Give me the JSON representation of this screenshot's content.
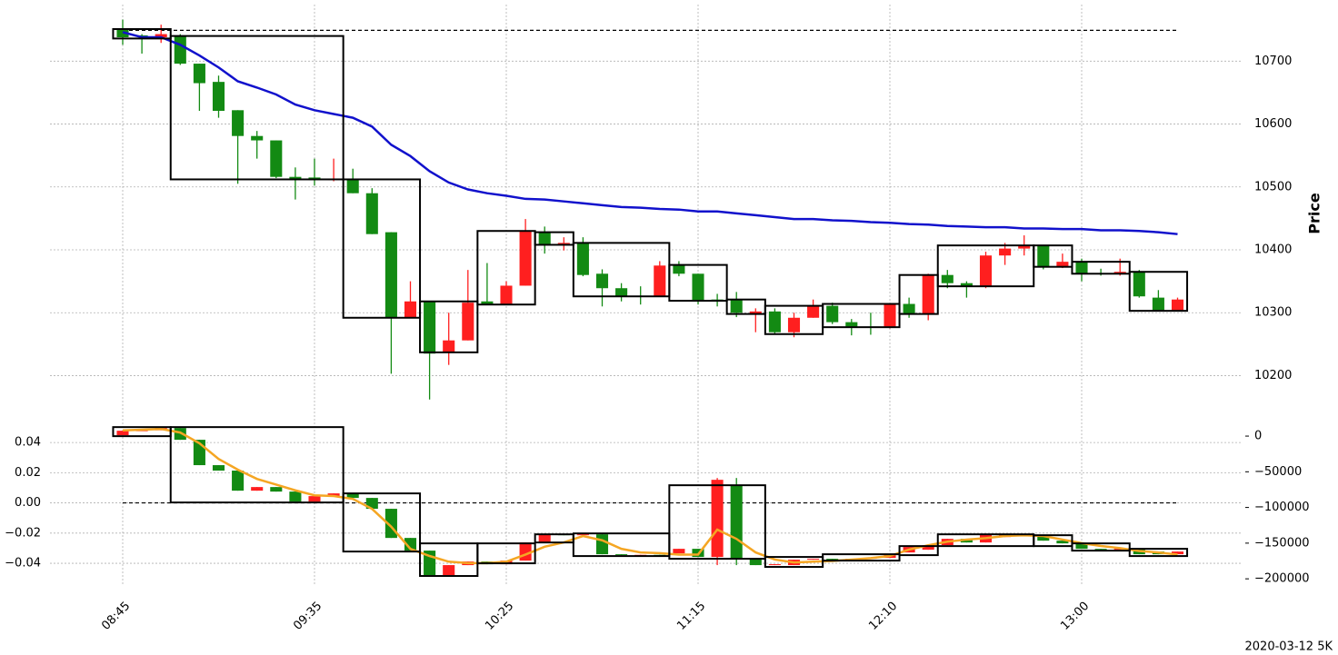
{
  "chart_data": [
    {
      "type": "candlestick",
      "ylabel": "Price",
      "grid": true,
      "up_color": "#ff1f1f",
      "down_color": "#138a13",
      "ylim": [
        10140,
        10790
      ],
      "yticks": [
        10200,
        10300,
        10400,
        10500,
        10600,
        10700
      ],
      "hline": 10749,
      "open": [
        10750,
        10741,
        10738,
        10740,
        10696,
        10667,
        10622,
        10581,
        10574,
        10516,
        10515,
        10511,
        10512,
        10490,
        10428,
        10292,
        10318,
        10237,
        10256,
        10318,
        10314,
        10343,
        10428,
        10408,
        10411,
        10362,
        10339,
        10327,
        10326,
        10376,
        10362,
        10321,
        10321,
        10298,
        10302,
        10269,
        10292,
        10311,
        10285,
        10278,
        10278,
        10314,
        10298,
        10360,
        10347,
        10342,
        10391,
        10402,
        10407,
        10373,
        10381,
        10363,
        10362,
        10365,
        10324,
        10304
      ],
      "high": [
        10766,
        10743,
        10758,
        10743,
        10696,
        10677,
        10622,
        10589,
        10574,
        10531,
        10545,
        10545,
        10529,
        10498,
        10428,
        10350,
        10318,
        10300,
        10368,
        10379,
        10350,
        10449,
        10437,
        10420,
        10420,
        10369,
        10347,
        10342,
        10382,
        10382,
        10362,
        10330,
        10333,
        10307,
        10307,
        10300,
        10321,
        10316,
        10290,
        10300,
        10314,
        10324,
        10362,
        10368,
        10350,
        10397,
        10411,
        10423,
        10408,
        10394,
        10386,
        10370,
        10386,
        10368,
        10336,
        10324
      ],
      "low": [
        10726,
        10712,
        10729,
        10694,
        10621,
        10610,
        10505,
        10545,
        10514,
        10480,
        10502,
        10509,
        10490,
        10425,
        10203,
        10292,
        10162,
        10217,
        10256,
        10314,
        10313,
        10343,
        10394,
        10399,
        10358,
        10310,
        10318,
        10313,
        10326,
        10358,
        10313,
        10310,
        10293,
        10269,
        10266,
        10261,
        10292,
        10282,
        10264,
        10265,
        10275,
        10292,
        10288,
        10339,
        10324,
        10339,
        10376,
        10391,
        10369,
        10371,
        10350,
        10359,
        10359,
        10324,
        10304,
        10304
      ],
      "close": [
        10738,
        10740,
        10743,
        10696,
        10665,
        10621,
        10581,
        10574,
        10516,
        10512,
        10511,
        10513,
        10490,
        10425,
        10292,
        10318,
        10235,
        10256,
        10316,
        10314,
        10343,
        10430,
        10408,
        10411,
        10360,
        10339,
        10327,
        10326,
        10375,
        10362,
        10319,
        10320,
        10300,
        10302,
        10269,
        10292,
        10311,
        10285,
        10278,
        10277,
        10314,
        10298,
        10360,
        10347,
        10342,
        10391,
        10402,
        10407,
        10373,
        10381,
        10363,
        10362,
        10365,
        10326,
        10304,
        10321
      ],
      "line": {
        "color": "#1111cc",
        "values": [
          10746,
          10738,
          10738,
          10726,
          10709,
          10690,
          10668,
          10658,
          10647,
          10631,
          10622,
          10616,
          10610,
          10596,
          10567,
          10549,
          10525,
          10507,
          10496,
          10490,
          10486,
          10481,
          10480,
          10477,
          10474,
          10471,
          10468,
          10467,
          10465,
          10464,
          10461,
          10461,
          10458,
          10455,
          10452,
          10449,
          10449,
          10447,
          10446,
          10444,
          10443,
          10441,
          10440,
          10438,
          10437,
          10436,
          10436,
          10434,
          10434,
          10433,
          10433,
          10431,
          10431,
          10430,
          10428,
          10425
        ]
      },
      "zones": [
        {
          "start": 0,
          "end": 2,
          "high": 10751,
          "low": 10736
        },
        {
          "start": 3,
          "end": 11,
          "high": 10740,
          "low": 10512
        },
        {
          "start": 12,
          "end": 15,
          "high": 10512,
          "low": 10292
        },
        {
          "start": 16,
          "end": 18,
          "high": 10318,
          "low": 10237
        },
        {
          "start": 19,
          "end": 21,
          "high": 10430,
          "low": 10313
        },
        {
          "start": 22,
          "end": 23,
          "high": 10428,
          "low": 10408
        },
        {
          "start": 24,
          "end": 28,
          "high": 10411,
          "low": 10326
        },
        {
          "start": 29,
          "end": 31,
          "high": 10376,
          "low": 10319
        },
        {
          "start": 32,
          "end": 33,
          "high": 10321,
          "low": 10298
        },
        {
          "start": 34,
          "end": 36,
          "high": 10311,
          "low": 10266
        },
        {
          "start": 37,
          "end": 40,
          "high": 10314,
          "low": 10277
        },
        {
          "start": 41,
          "end": 42,
          "high": 10360,
          "low": 10298
        },
        {
          "start": 43,
          "end": 47,
          "high": 10407,
          "low": 10342
        },
        {
          "start": 48,
          "end": 49,
          "high": 10407,
          "low": 10373
        },
        {
          "start": 50,
          "end": 52,
          "high": 10381,
          "low": 10362
        },
        {
          "start": 53,
          "end": 55,
          "high": 10365,
          "low": 10303
        }
      ]
    },
    {
      "type": "candlestick",
      "grid": true,
      "up_color": "#ff1f1f",
      "down_color": "#138a13",
      "categories": [
        "08:45",
        null,
        null,
        null,
        null,
        null,
        null,
        null,
        null,
        null,
        "09:35",
        null,
        null,
        null,
        null,
        null,
        null,
        null,
        null,
        null,
        "10:25",
        null,
        null,
        null,
        null,
        null,
        null,
        null,
        null,
        null,
        "11:15",
        null,
        null,
        null,
        null,
        null,
        null,
        null,
        null,
        null,
        "12:10",
        null,
        null,
        null,
        null,
        null,
        null,
        null,
        null,
        null,
        "13:00",
        null,
        null,
        null,
        null,
        null
      ],
      "ylim": [
        -0.055,
        0.0545
      ],
      "yticks": [
        0.04,
        0.02,
        {
          "value": 0,
          "label": "0.00"
        },
        {
          "value": -0.02,
          "label": "−0.02"
        },
        {
          "value": -0.04,
          "label": "−0.04"
        }
      ],
      "y2lim": [
        -210000,
        21700
      ],
      "y2ticks": [
        0,
        {
          "value": -50000,
          "label": "−50000"
        },
        {
          "value": -100000,
          "label": "−100000"
        },
        {
          "value": -150000,
          "label": "−150000"
        },
        {
          "value": -200000,
          "label": "−200000"
        }
      ],
      "hline": 0,
      "open": [
        0.0448,
        0.0478,
        0.0481,
        0.0496,
        0.0418,
        0.025,
        0.0214,
        0.0081,
        0.0105,
        0.0075,
        0.0009,
        0.0045,
        0.0063,
        0.0033,
        -0.0039,
        -0.0232,
        -0.0316,
        -0.0478,
        -0.0412,
        -0.0388,
        -0.0406,
        -0.0382,
        -0.0262,
        -0.0208,
        -0.0214,
        -0.0208,
        -0.034,
        -0.0346,
        -0.0344,
        -0.0334,
        -0.0304,
        -0.0358,
        0.0117,
        -0.037,
        -0.0412,
        -0.0412,
        -0.0376,
        -0.037,
        -0.0376,
        -0.037,
        -0.0364,
        -0.0328,
        -0.031,
        -0.028,
        -0.0238,
        -0.0262,
        -0.0226,
        -0.0208,
        -0.022,
        -0.025,
        -0.0268,
        -0.0304,
        -0.031,
        -0.0304,
        -0.0322,
        -0.034
      ],
      "high": [
        0.0478,
        0.0481,
        0.0496,
        0.0496,
        0.0418,
        0.025,
        0.0214,
        0.0105,
        0.0105,
        0.0075,
        0.0045,
        0.0063,
        0.0063,
        0.0033,
        -0.0039,
        -0.0232,
        -0.0316,
        -0.0412,
        -0.0388,
        -0.0388,
        -0.0382,
        -0.0262,
        -0.0208,
        -0.0208,
        -0.0208,
        -0.0208,
        -0.034,
        -0.0344,
        -0.0344,
        -0.0304,
        -0.0304,
        0.0165,
        0.0165,
        -0.037,
        -0.0406,
        -0.0376,
        -0.037,
        -0.037,
        -0.037,
        -0.0364,
        -0.0346,
        -0.0292,
        -0.028,
        -0.0238,
        -0.0238,
        -0.0208,
        -0.0208,
        -0.0208,
        -0.022,
        -0.025,
        -0.0268,
        -0.0304,
        -0.0304,
        -0.0304,
        -0.0322,
        -0.0322
      ],
      "low": [
        0.0448,
        0.0478,
        0.0481,
        0.0418,
        0.025,
        0.0214,
        0.0081,
        0.0081,
        0.0075,
        0.0009,
        0.0009,
        0.0045,
        0.0033,
        -0.0039,
        -0.0232,
        -0.0316,
        -0.0478,
        -0.0478,
        -0.0412,
        -0.0406,
        -0.0406,
        -0.0382,
        -0.0262,
        -0.0214,
        -0.0214,
        -0.034,
        -0.0346,
        -0.0346,
        -0.0352,
        -0.0334,
        -0.0358,
        -0.0412,
        -0.0412,
        -0.0412,
        -0.0412,
        -0.0412,
        -0.0376,
        -0.0376,
        -0.0376,
        -0.037,
        -0.0364,
        -0.0328,
        -0.031,
        -0.028,
        -0.0262,
        -0.0262,
        -0.0226,
        -0.022,
        -0.025,
        -0.0268,
        -0.0304,
        -0.031,
        -0.031,
        -0.034,
        -0.034,
        -0.034
      ],
      "close": [
        0.0478,
        0.0481,
        0.0496,
        0.0418,
        0.025,
        0.0214,
        0.0081,
        0.0105,
        0.0075,
        0.0009,
        0.0045,
        0.0063,
        0.0033,
        -0.0039,
        -0.0232,
        -0.0316,
        -0.0478,
        -0.0412,
        -0.0388,
        -0.0406,
        -0.0382,
        -0.0262,
        -0.0208,
        -0.0214,
        -0.0208,
        -0.034,
        -0.0346,
        -0.0344,
        -0.0352,
        -0.0304,
        -0.0358,
        0.0153,
        -0.037,
        -0.0412,
        -0.0406,
        -0.0376,
        -0.037,
        -0.0376,
        -0.037,
        -0.0364,
        -0.0346,
        -0.0292,
        -0.028,
        -0.0238,
        -0.0262,
        -0.0208,
        -0.0208,
        -0.022,
        -0.025,
        -0.0268,
        -0.0304,
        -0.031,
        -0.0304,
        -0.034,
        -0.034,
        -0.0322
      ],
      "line": {
        "color": "#f5a623",
        "axis": "y2",
        "values": [
          8000,
          9000,
          10000,
          5000,
          -10000,
          -32000,
          -47000,
          -60000,
          -68000,
          -76000,
          -83000,
          -84000,
          -88000,
          -102000,
          -127000,
          -158000,
          -168000,
          -176000,
          -178000,
          -178000,
          -176000,
          -166000,
          -155000,
          -149000,
          -140000,
          -146000,
          -158000,
          -163000,
          -164000,
          -166000,
          -166000,
          -131000,
          -144000,
          -163000,
          -173000,
          -177000,
          -176000,
          -175000,
          -173000,
          -171000,
          -168000,
          -159000,
          -153000,
          -148000,
          -145000,
          -143000,
          -140000,
          -139000,
          -140000,
          -145000,
          -150000,
          -154000,
          -157000,
          -161000,
          -163000,
          -166000
        ]
      },
      "zones": [
        {
          "start": 0,
          "end": 2,
          "high": 0.0502,
          "low": 0.0442
        },
        {
          "start": 3,
          "end": 11,
          "high": 0.0502,
          "low": 0.0003
        },
        {
          "start": 12,
          "end": 15,
          "high": 0.0063,
          "low": -0.0322
        },
        {
          "start": 16,
          "end": 18,
          "high": -0.0268,
          "low": -0.0484
        },
        {
          "start": 19,
          "end": 21,
          "high": -0.0268,
          "low": -0.04
        },
        {
          "start": 22,
          "end": 23,
          "high": -0.0208,
          "low": -0.0262
        },
        {
          "start": 24,
          "end": 28,
          "high": -0.0202,
          "low": -0.0352
        },
        {
          "start": 29,
          "end": 33,
          "high": 0.0117,
          "low": -0.037
        },
        {
          "start": 34,
          "end": 36,
          "high": -0.0358,
          "low": -0.0424
        },
        {
          "start": 37,
          "end": 40,
          "high": -0.034,
          "low": -0.0382
        },
        {
          "start": 41,
          "end": 42,
          "high": -0.0286,
          "low": -0.0346
        },
        {
          "start": 43,
          "end": 47,
          "high": -0.0208,
          "low": -0.0286
        },
        {
          "start": 48,
          "end": 49,
          "high": -0.0214,
          "low": -0.0286
        },
        {
          "start": 50,
          "end": 52,
          "high": -0.0268,
          "low": -0.0316
        },
        {
          "start": 53,
          "end": 55,
          "high": -0.0304,
          "low": -0.0352
        }
      ]
    }
  ],
  "footnote": "2020-03-12 5K"
}
